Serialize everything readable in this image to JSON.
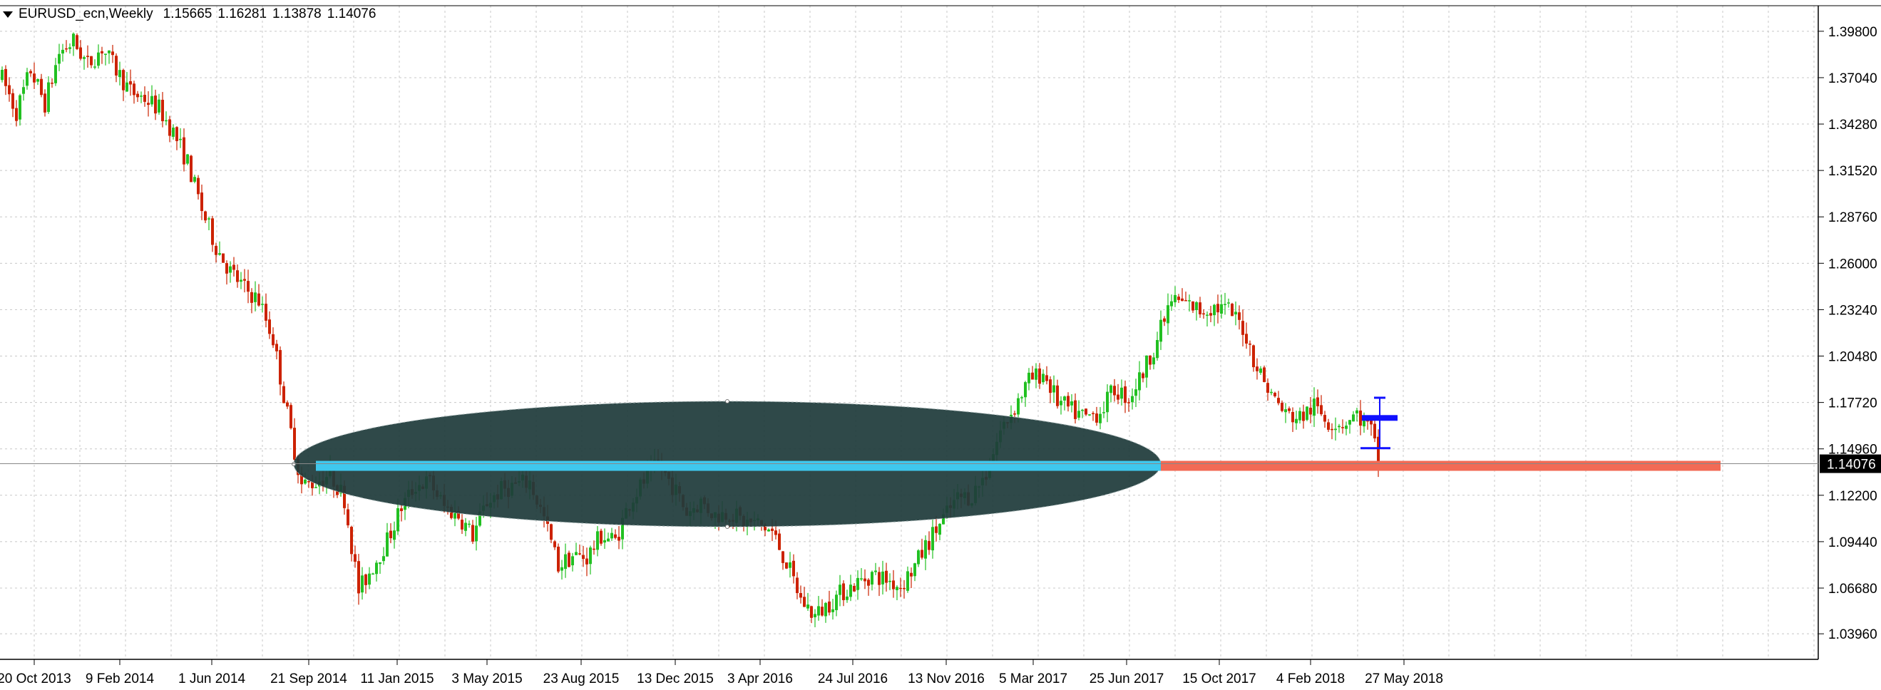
{
  "header": {
    "symbol": "EURUSD_ecn,Weekly",
    "open": "1.15665",
    "high": "1.16281",
    "low": "1.13878",
    "close": "1.14076"
  },
  "chart_data": {
    "type": "candlestick",
    "title": "",
    "xlabel": "",
    "ylabel": "",
    "ylim": [
      1.0244,
      1.4132
    ],
    "y_ticks": [
      "1.39800",
      "1.37040",
      "1.34280",
      "1.31520",
      "1.28760",
      "1.26000",
      "1.23240",
      "1.20480",
      "1.17720",
      "1.14960",
      "1.12200",
      "1.09440",
      "1.06680",
      "1.03960"
    ],
    "x_ticks": [
      "20 Oct 2013",
      "9 Feb 2014",
      "1 Jun 2014",
      "21 Sep 2014",
      "11 Jan 2015",
      "3 May 2015",
      "23 Aug 2015",
      "13 Dec 2015",
      "3 Apr 2016",
      "24 Jul 2016",
      "13 Nov 2016",
      "5 Mar 2017",
      "25 Jun 2017",
      "15 Oct 2017",
      "4 Feb 2018",
      "27 May 2018"
    ],
    "current_price": "1.14076",
    "grid": true,
    "colors": {
      "up": "#22c022",
      "down": "#cc2200",
      "grid": "#c8c8c8",
      "ellipse": "#1f3b3b",
      "support_line": "#3fc8ee",
      "projection_line": "#f26a55",
      "marker": "#1010ff",
      "price_tag": "#000000"
    },
    "anchors": [
      [
        0,
        1.37
      ],
      [
        4,
        1.35
      ],
      [
        8,
        1.375
      ],
      [
        12,
        1.355
      ],
      [
        16,
        1.385
      ],
      [
        20,
        1.392
      ],
      [
        24,
        1.378
      ],
      [
        28,
        1.388
      ],
      [
        32,
        1.375
      ],
      [
        36,
        1.362
      ],
      [
        40,
        1.358
      ],
      [
        44,
        1.352
      ],
      [
        48,
        1.338
      ],
      [
        52,
        1.32
      ],
      [
        56,
        1.292
      ],
      [
        60,
        1.27
      ],
      [
        64,
        1.255
      ],
      [
        68,
        1.245
      ],
      [
        72,
        1.238
      ],
      [
        76,
        1.215
      ],
      [
        80,
        1.17
      ],
      [
        84,
        1.128
      ],
      [
        88,
        1.13
      ],
      [
        92,
        1.135
      ],
      [
        96,
        1.12
      ],
      [
        100,
        1.065
      ],
      [
        104,
        1.08
      ],
      [
        108,
        1.095
      ],
      [
        112,
        1.115
      ],
      [
        116,
        1.128
      ],
      [
        120,
        1.13
      ],
      [
        124,
        1.115
      ],
      [
        128,
        1.11
      ],
      [
        132,
        1.098
      ],
      [
        136,
        1.118
      ],
      [
        140,
        1.125
      ],
      [
        144,
        1.128
      ],
      [
        148,
        1.13
      ],
      [
        152,
        1.108
      ],
      [
        156,
        1.08
      ],
      [
        160,
        1.086
      ],
      [
        164,
        1.085
      ],
      [
        168,
        1.098
      ],
      [
        172,
        1.095
      ],
      [
        176,
        1.118
      ],
      [
        180,
        1.13
      ],
      [
        184,
        1.14
      ],
      [
        188,
        1.128
      ],
      [
        192,
        1.112
      ],
      [
        196,
        1.118
      ],
      [
        200,
        1.11
      ],
      [
        204,
        1.112
      ],
      [
        208,
        1.106
      ],
      [
        212,
        1.105
      ],
      [
        216,
        1.1
      ],
      [
        220,
        1.082
      ],
      [
        224,
        1.06
      ],
      [
        228,
        1.05
      ],
      [
        232,
        1.058
      ],
      [
        236,
        1.065
      ],
      [
        240,
        1.07
      ],
      [
        244,
        1.075
      ],
      [
        248,
        1.072
      ],
      [
        252,
        1.068
      ],
      [
        256,
        1.08
      ],
      [
        260,
        1.095
      ],
      [
        264,
        1.108
      ],
      [
        268,
        1.12
      ],
      [
        272,
        1.122
      ],
      [
        276,
        1.135
      ],
      [
        280,
        1.16
      ],
      [
        284,
        1.175
      ],
      [
        288,
        1.19
      ],
      [
        292,
        1.195
      ],
      [
        296,
        1.178
      ],
      [
        300,
        1.172
      ],
      [
        304,
        1.168
      ],
      [
        308,
        1.172
      ],
      [
        312,
        1.185
      ],
      [
        316,
        1.18
      ],
      [
        320,
        1.195
      ],
      [
        324,
        1.215
      ],
      [
        328,
        1.238
      ],
      [
        332,
        1.236
      ],
      [
        336,
        1.232
      ],
      [
        340,
        1.234
      ],
      [
        344,
        1.232
      ],
      [
        348,
        1.222
      ],
      [
        352,
        1.198
      ],
      [
        356,
        1.182
      ],
      [
        360,
        1.17
      ],
      [
        364,
        1.168
      ],
      [
        368,
        1.175
      ],
      [
        372,
        1.166
      ],
      [
        376,
        1.165
      ],
      [
        380,
        1.17
      ],
      [
        384,
        1.16
      ],
      [
        386,
        1.142
      ]
    ],
    "annotations": {
      "ellipse_label": "",
      "support_level": 1.1395,
      "projection_level": 1.1395
    }
  }
}
